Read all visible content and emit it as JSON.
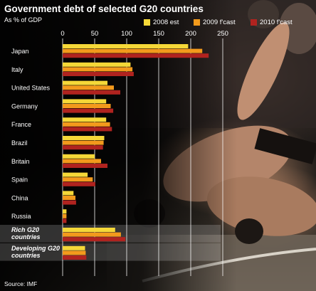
{
  "title": "Government debt of selected G20 countries",
  "subtitle": "As % of GDP",
  "source": "Source: IMF",
  "colors": {
    "s2008": "#f5d838",
    "s2009": "#f39a1c",
    "s2010": "#b0231f",
    "grid": "#ffffff",
    "highlight_band": "#ffffff"
  },
  "background_image": "photo-sumo-wrestlers",
  "chart_data": {
    "type": "bar",
    "orientation": "horizontal",
    "title": "Government debt of selected G20 countries",
    "subtitle": "As % of GDP",
    "xlim": [
      0,
      250
    ],
    "ticks": [
      0,
      50,
      100,
      150,
      200,
      250
    ],
    "grid": true,
    "legend_position": "top-right",
    "categories": [
      "Japan",
      "Italy",
      "United States",
      "Germany",
      "France",
      "Brazil",
      "Britain",
      "Spain",
      "China",
      "Russia",
      "Rich G20 countries",
      "Developing G20 countries"
    ],
    "highlighted_categories": [
      "Rich G20 countries",
      "Developing G20 countries"
    ],
    "series": [
      {
        "name": "2008 est",
        "color": "#f5d838",
        "values": [
          196,
          106,
          70,
          68,
          68,
          65,
          50,
          39,
          17,
          6,
          82,
          35
        ]
      },
      {
        "name": "2009 f'cast",
        "color": "#f39a1c",
        "values": [
          218,
          109,
          80,
          75,
          74,
          64,
          60,
          47,
          20,
          6,
          91,
          36
        ]
      },
      {
        "name": "2010 f'cast",
        "color": "#b0231f",
        "values": [
          228,
          111,
          90,
          79,
          77,
          63,
          70,
          51,
          21,
          6,
          98,
          37
        ]
      }
    ]
  }
}
